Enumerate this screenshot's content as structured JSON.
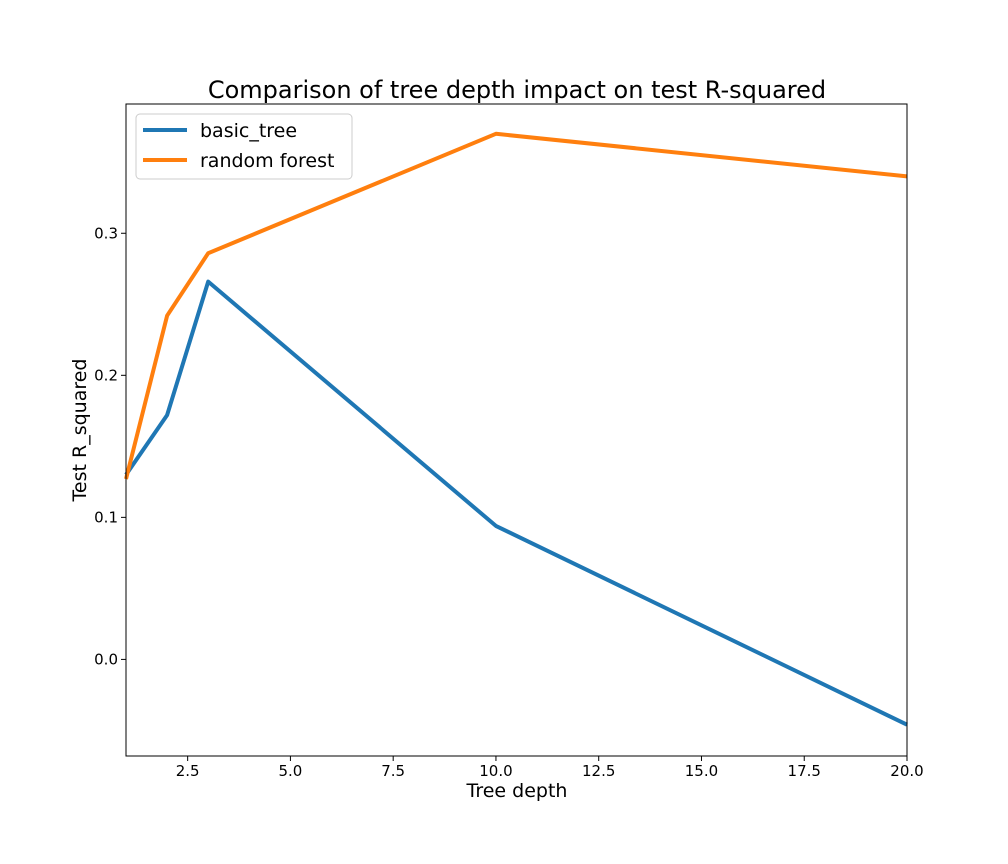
{
  "chart_data": {
    "type": "line",
    "title": "Comparison of tree depth impact on test R-squared",
    "xlabel": "Tree depth",
    "ylabel": "Test R_squared",
    "xlim": [
      1,
      20
    ],
    "ylim": [
      -0.068,
      0.391
    ],
    "xticks": [
      2.5,
      5.0,
      7.5,
      10.0,
      12.5,
      15.0,
      17.5,
      20.0
    ],
    "xtick_labels": [
      "2.5",
      "5.0",
      "7.5",
      "10.0",
      "12.5",
      "15.0",
      "17.5",
      "20.0"
    ],
    "yticks": [
      0.0,
      0.1,
      0.2,
      0.3
    ],
    "ytick_labels": [
      "0.0",
      "0.1",
      "0.2",
      "0.3"
    ],
    "grid": false,
    "legend_position": "top-left",
    "series": [
      {
        "name": "basic_tree",
        "color": "#1f77b4",
        "x": [
          1,
          2,
          3,
          10,
          20
        ],
        "y": [
          0.13,
          0.172,
          0.266,
          0.094,
          -0.046
        ]
      },
      {
        "name": "random forest",
        "color": "#ff7f0e",
        "x": [
          1,
          2,
          3,
          10,
          20
        ],
        "y": [
          0.127,
          0.242,
          0.286,
          0.37,
          0.34
        ]
      }
    ]
  }
}
